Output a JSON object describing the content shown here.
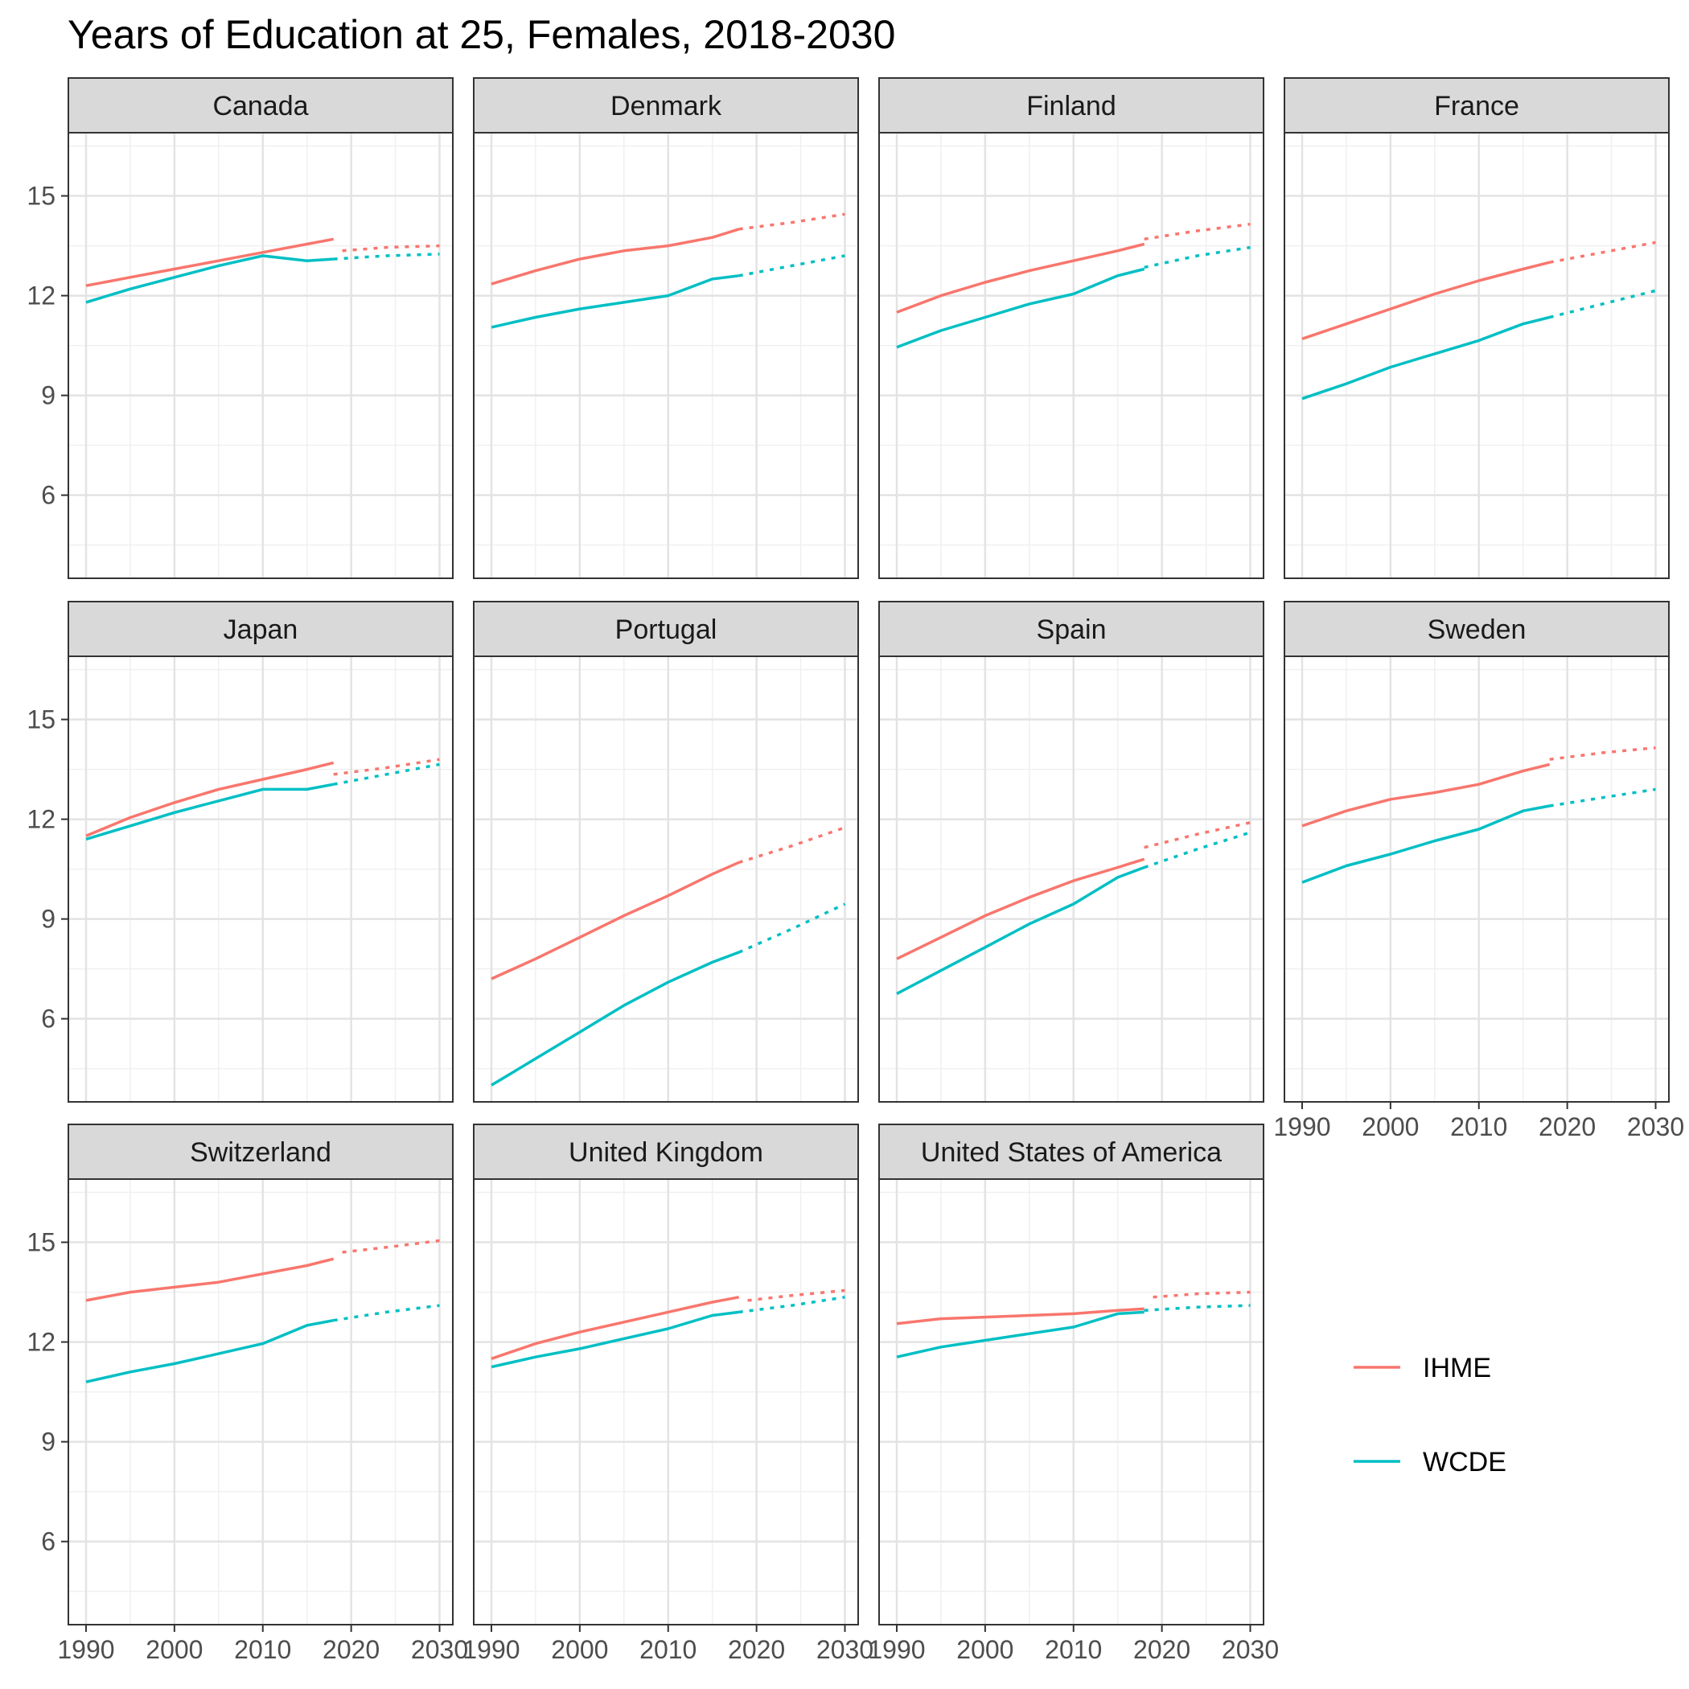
{
  "chart_data": {
    "type": "line",
    "title": "Years of Education at 25, Females, 2018-2030",
    "xlabel": "",
    "ylabel": "",
    "xlim": [
      1988,
      2031.5
    ],
    "ylim": [
      3.5,
      16.9
    ],
    "x_ticks": [
      1990,
      2000,
      2010,
      2020,
      2030
    ],
    "x_tick_labels": [
      "1990",
      "2000",
      "2010",
      "2020",
      "2030"
    ],
    "y_ticks": [
      6,
      9,
      12,
      15
    ],
    "y_tick_labels": [
      "6",
      "9",
      "12",
      "15"
    ],
    "grid": true,
    "legend_position": "right",
    "legend": [
      {
        "name": "IHME",
        "color": "#F8766D"
      },
      {
        "name": "WCDE",
        "color": "#00BFC4"
      }
    ],
    "line_styles": {
      "observed": "solid",
      "projected": "dotted"
    },
    "panels": [
      {
        "country": "Canada",
        "series": [
          {
            "name": "IHME",
            "x": [
              1990,
              1995,
              2000,
              2005,
              2010,
              2015,
              2018
            ],
            "values": [
              12.3,
              12.55,
              12.8,
              13.05,
              13.3,
              13.55,
              13.7
            ],
            "proj_x": [
              2019,
              2024,
              2030
            ],
            "proj_values": [
              13.35,
              13.45,
              13.5
            ]
          },
          {
            "name": "WCDE",
            "x": [
              1990,
              1995,
              2000,
              2005,
              2010,
              2015,
              2018
            ],
            "values": [
              11.8,
              12.2,
              12.55,
              12.9,
              13.2,
              13.05,
              13.1
            ],
            "proj_x": [
              2018,
              2024,
              2030
            ],
            "proj_values": [
              13.1,
              13.2,
              13.25
            ]
          }
        ]
      },
      {
        "country": "Denmark",
        "series": [
          {
            "name": "IHME",
            "x": [
              1990,
              1995,
              2000,
              2005,
              2010,
              2015,
              2018
            ],
            "values": [
              12.35,
              12.75,
              13.1,
              13.35,
              13.5,
              13.75,
              14.0
            ],
            "proj_x": [
              2018,
              2024,
              2030
            ],
            "proj_values": [
              14.0,
              14.2,
              14.45
            ]
          },
          {
            "name": "WCDE",
            "x": [
              1990,
              1995,
              2000,
              2005,
              2010,
              2015,
              2018
            ],
            "values": [
              11.05,
              11.35,
              11.6,
              11.8,
              12.0,
              12.5,
              12.6
            ],
            "proj_x": [
              2018,
              2024,
              2030
            ],
            "proj_values": [
              12.6,
              12.9,
              13.2
            ]
          }
        ]
      },
      {
        "country": "Finland",
        "series": [
          {
            "name": "IHME",
            "x": [
              1990,
              1995,
              2000,
              2005,
              2010,
              2015,
              2018
            ],
            "values": [
              11.5,
              12.0,
              12.4,
              12.75,
              13.05,
              13.35,
              13.55
            ],
            "proj_x": [
              2018,
              2024,
              2030
            ],
            "proj_values": [
              13.7,
              13.95,
              14.15
            ]
          },
          {
            "name": "WCDE",
            "x": [
              1990,
              1995,
              2000,
              2005,
              2010,
              2015,
              2018
            ],
            "values": [
              10.45,
              10.95,
              11.35,
              11.75,
              12.05,
              12.6,
              12.8
            ],
            "proj_x": [
              2018,
              2024,
              2030
            ],
            "proj_values": [
              12.85,
              13.2,
              13.45
            ]
          }
        ]
      },
      {
        "country": "France",
        "series": [
          {
            "name": "IHME",
            "x": [
              1990,
              1995,
              2000,
              2005,
              2010,
              2015,
              2018
            ],
            "values": [
              10.7,
              11.15,
              11.6,
              12.05,
              12.45,
              12.8,
              13.0
            ],
            "proj_x": [
              2018,
              2024,
              2030
            ],
            "proj_values": [
              13.0,
              13.3,
              13.6
            ]
          },
          {
            "name": "WCDE",
            "x": [
              1990,
              1995,
              2000,
              2005,
              2010,
              2015,
              2018
            ],
            "values": [
              8.9,
              9.35,
              9.85,
              10.25,
              10.65,
              11.15,
              11.35
            ],
            "proj_x": [
              2018,
              2024,
              2030
            ],
            "proj_values": [
              11.35,
              11.75,
              12.15
            ]
          }
        ]
      },
      {
        "country": "Japan",
        "series": [
          {
            "name": "IHME",
            "x": [
              1990,
              1995,
              2000,
              2005,
              2010,
              2015,
              2018
            ],
            "values": [
              11.5,
              12.05,
              12.5,
              12.9,
              13.2,
              13.5,
              13.7
            ],
            "proj_x": [
              2018,
              2024,
              2030
            ],
            "proj_values": [
              13.35,
              13.55,
              13.8
            ]
          },
          {
            "name": "WCDE",
            "x": [
              1990,
              1995,
              2000,
              2005,
              2010,
              2015,
              2018
            ],
            "values": [
              11.4,
              11.8,
              12.2,
              12.55,
              12.9,
              12.9,
              13.05
            ],
            "proj_x": [
              2018,
              2024,
              2030
            ],
            "proj_values": [
              13.05,
              13.35,
              13.65
            ]
          }
        ]
      },
      {
        "country": "Portugal",
        "series": [
          {
            "name": "IHME",
            "x": [
              1990,
              1995,
              2000,
              2005,
              2010,
              2015,
              2018
            ],
            "values": [
              7.2,
              7.8,
              8.45,
              9.1,
              9.7,
              10.35,
              10.7
            ],
            "proj_x": [
              2018,
              2024,
              2030
            ],
            "proj_values": [
              10.7,
              11.2,
              11.75
            ]
          },
          {
            "name": "WCDE",
            "x": [
              1990,
              1995,
              2000,
              2005,
              2010,
              2015,
              2018
            ],
            "values": [
              4.0,
              4.8,
              5.6,
              6.4,
              7.1,
              7.7,
              8.0
            ],
            "proj_x": [
              2018,
              2024,
              2030
            ],
            "proj_values": [
              8.0,
              8.7,
              9.45
            ]
          }
        ]
      },
      {
        "country": "Spain",
        "series": [
          {
            "name": "IHME",
            "x": [
              1990,
              1995,
              2000,
              2005,
              2010,
              2015,
              2018
            ],
            "values": [
              7.8,
              8.45,
              9.1,
              9.65,
              10.15,
              10.55,
              10.8
            ],
            "proj_x": [
              2018,
              2024,
              2030
            ],
            "proj_values": [
              11.15,
              11.55,
              11.9
            ]
          },
          {
            "name": "WCDE",
            "x": [
              1990,
              1995,
              2000,
              2005,
              2010,
              2015,
              2018
            ],
            "values": [
              6.75,
              7.45,
              8.15,
              8.85,
              9.45,
              10.25,
              10.55
            ],
            "proj_x": [
              2018,
              2024,
              2030
            ],
            "proj_values": [
              10.55,
              11.1,
              11.6
            ]
          }
        ]
      },
      {
        "country": "Sweden",
        "series": [
          {
            "name": "IHME",
            "x": [
              1990,
              1995,
              2000,
              2005,
              2010,
              2015,
              2018
            ],
            "values": [
              11.8,
              12.25,
              12.6,
              12.8,
              13.05,
              13.45,
              13.65
            ],
            "proj_x": [
              2018,
              2024,
              2030
            ],
            "proj_values": [
              13.8,
              14.0,
              14.15
            ]
          },
          {
            "name": "WCDE",
            "x": [
              1990,
              1995,
              2000,
              2005,
              2010,
              2015,
              2018
            ],
            "values": [
              10.1,
              10.6,
              10.95,
              11.35,
              11.7,
              12.25,
              12.4
            ],
            "proj_x": [
              2018,
              2024,
              2030
            ],
            "proj_values": [
              12.4,
              12.65,
              12.9
            ]
          }
        ]
      },
      {
        "country": "Switzerland",
        "series": [
          {
            "name": "IHME",
            "x": [
              1990,
              1995,
              2000,
              2005,
              2010,
              2015,
              2018
            ],
            "values": [
              13.25,
              13.5,
              13.65,
              13.8,
              14.05,
              14.3,
              14.5
            ],
            "proj_x": [
              2019,
              2024,
              2030
            ],
            "proj_values": [
              14.7,
              14.85,
              15.05
            ]
          },
          {
            "name": "WCDE",
            "x": [
              1990,
              1995,
              2000,
              2005,
              2010,
              2015,
              2018
            ],
            "values": [
              10.8,
              11.1,
              11.35,
              11.65,
              11.95,
              12.5,
              12.65
            ],
            "proj_x": [
              2018,
              2024,
              2030
            ],
            "proj_values": [
              12.65,
              12.9,
              13.1
            ]
          }
        ]
      },
      {
        "country": "United Kingdom",
        "series": [
          {
            "name": "IHME",
            "x": [
              1990,
              1995,
              2000,
              2005,
              2010,
              2015,
              2018
            ],
            "values": [
              11.5,
              11.95,
              12.3,
              12.6,
              12.9,
              13.2,
              13.35
            ],
            "proj_x": [
              2019,
              2024,
              2030
            ],
            "proj_values": [
              13.25,
              13.4,
              13.55
            ]
          },
          {
            "name": "WCDE",
            "x": [
              1990,
              1995,
              2000,
              2005,
              2010,
              2015,
              2018
            ],
            "values": [
              11.25,
              11.55,
              11.8,
              12.1,
              12.4,
              12.8,
              12.9
            ],
            "proj_x": [
              2018,
              2024,
              2030
            ],
            "proj_values": [
              12.9,
              13.1,
              13.35
            ]
          }
        ]
      },
      {
        "country": "United States of America",
        "series": [
          {
            "name": "IHME",
            "x": [
              1990,
              1995,
              2000,
              2005,
              2010,
              2015,
              2018
            ],
            "values": [
              12.55,
              12.7,
              12.75,
              12.8,
              12.85,
              12.95,
              13.0
            ],
            "proj_x": [
              2019,
              2024,
              2030
            ],
            "proj_values": [
              13.35,
              13.45,
              13.5
            ]
          },
          {
            "name": "WCDE",
            "x": [
              1990,
              1995,
              2000,
              2005,
              2010,
              2015,
              2018
            ],
            "values": [
              11.55,
              11.85,
              12.05,
              12.25,
              12.45,
              12.85,
              12.9
            ],
            "proj_x": [
              2018,
              2024,
              2030
            ],
            "proj_values": [
              12.95,
              13.05,
              13.1
            ]
          }
        ]
      }
    ]
  }
}
